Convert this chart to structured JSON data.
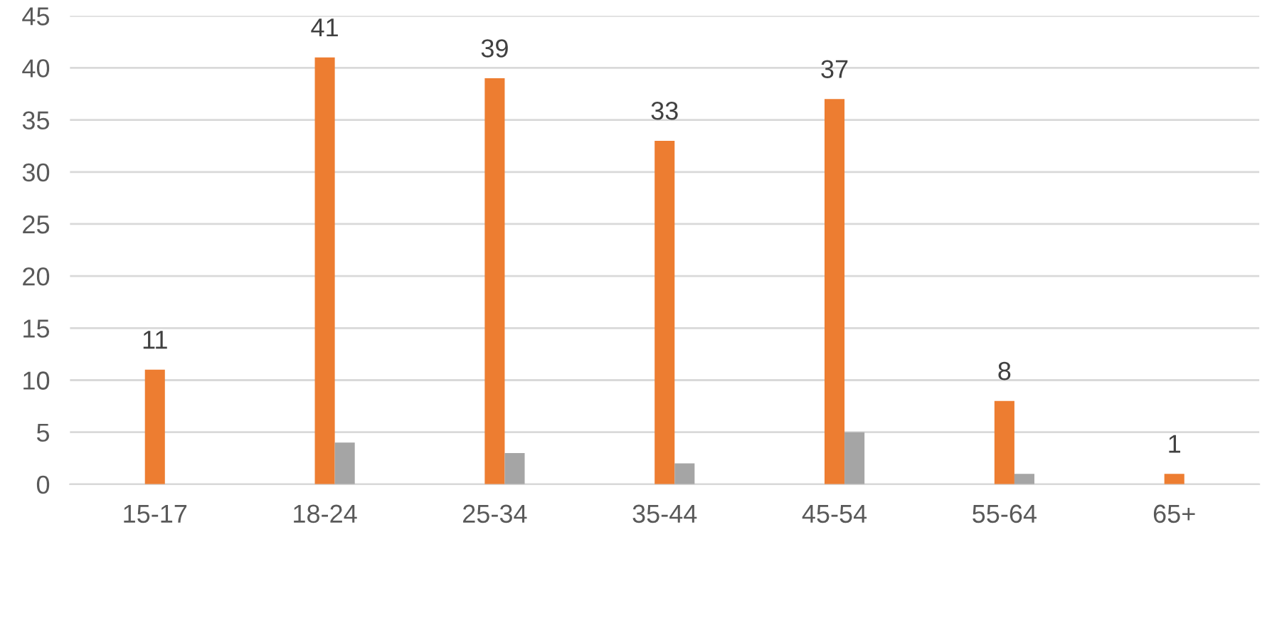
{
  "chart_data": {
    "type": "bar",
    "categories": [
      "15-17",
      "18-24",
      "25-34",
      "35-44",
      "45-54",
      "55-64",
      "65+"
    ],
    "series": [
      {
        "color": "#4472c4",
        "values": [
          null,
          null,
          null,
          null,
          null,
          null,
          null
        ]
      },
      {
        "color": "#ed7d31",
        "values": [
          11,
          41,
          39,
          33,
          37,
          8,
          1
        ],
        "value_labels": [
          "11",
          "41",
          "39",
          "33",
          "37",
          "8",
          "1"
        ]
      },
      {
        "color": "#a5a5a5",
        "values": [
          null,
          4,
          3,
          2,
          5,
          1,
          null
        ]
      }
    ],
    "ylim": [
      0,
      45
    ],
    "yticks": [
      0,
      5,
      10,
      15,
      20,
      25,
      30,
      35,
      40,
      45
    ],
    "grid": "y"
  }
}
